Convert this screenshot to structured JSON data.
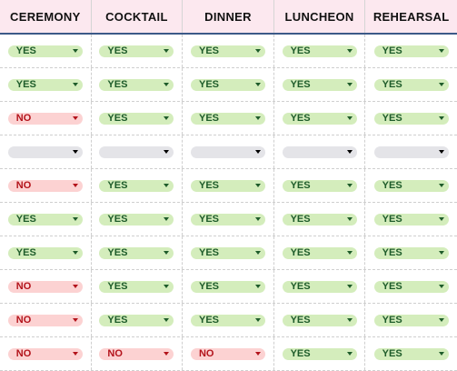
{
  "columns": [
    "CEREMONY",
    "COCKTAIL",
    "DINNER",
    "LUNCHEON",
    "REHEARSAL"
  ],
  "rows": [
    [
      "YES",
      "YES",
      "YES",
      "YES",
      "YES"
    ],
    [
      "YES",
      "YES",
      "YES",
      "YES",
      "YES"
    ],
    [
      "NO",
      "YES",
      "YES",
      "YES",
      "YES"
    ],
    [
      "",
      "",
      "",
      "",
      ""
    ],
    [
      "NO",
      "YES",
      "YES",
      "YES",
      "YES"
    ],
    [
      "YES",
      "YES",
      "YES",
      "YES",
      "YES"
    ],
    [
      "YES",
      "YES",
      "YES",
      "YES",
      "YES"
    ],
    [
      "NO",
      "YES",
      "YES",
      "YES",
      "YES"
    ],
    [
      "NO",
      "YES",
      "YES",
      "YES",
      "YES"
    ],
    [
      "NO",
      "NO",
      "NO",
      "YES",
      "YES"
    ]
  ],
  "colors": {
    "header_bg": "#fce8ef",
    "header_border": "#3c5a88",
    "yes_bg": "#d4edbc",
    "yes_text": "#1e5c2a",
    "no_bg": "#fcd2d2",
    "no_text": "#b3131b",
    "empty_bg": "#e4e4e8"
  },
  "icons": {
    "dropdown": "caret-down-icon"
  }
}
